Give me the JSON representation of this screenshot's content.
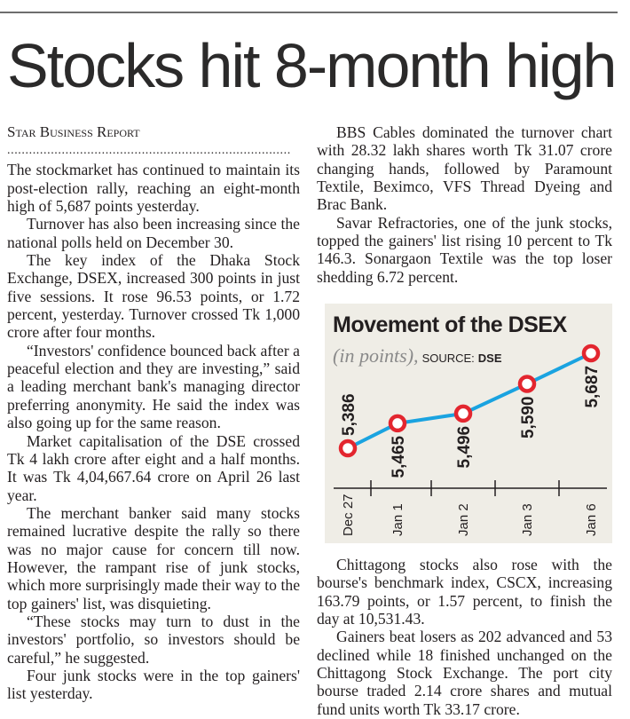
{
  "headline": "Stocks hit 8-month high",
  "byline": "Star Business Report",
  "dots": "..............................................................................",
  "left_paragraphs": [
    "The stockmarket has continued to maintain its post-election rally, reaching an eight-month high of 5,687 points yesterday.",
    "Turnover has also been increasing since the national polls held on December 30.",
    "The key index of the Dhaka Stock Exchange, DSEX, increased 300 points in just five sessions. It rose 96.53 points, or 1.72 percent, yesterday. Turnover crossed Tk 1,000 crore after four months.",
    "“Investors' confidence bounced back after a peaceful election and they are investing,” said a leading merchant bank's managing director preferring anonymity. He said the index was also going up for the same reason.",
    "Market capitalisation of the DSE crossed Tk 4 lakh crore after eight and a half months. It was Tk 4,04,667.64 crore on April 26 last year.",
    "The merchant banker said many stocks remained lucrative despite the rally so there was no major cause for concern till now. However, the rampant rise of junk stocks, which more surprisingly made their way to the top gainers' list, was disquieting.",
    "“These stocks may turn to dust in the investors' portfolio, so investors should be careful,” he suggested.",
    "Four junk stocks were in the top gainers' list yesterday."
  ],
  "right_top_paragraphs": [
    "BBS Cables dominated the turnover chart with 28.32 lakh shares worth Tk 31.07 crore changing hands, followed by Paramount Textile, Beximco, VFS Thread Dyeing and Brac Bank.",
    "Savar Refractories, one of the junk stocks, topped the gainers' list rising 10 percent to Tk 146.3. Sonargaon Textile was the top loser shedding 6.72 percent."
  ],
  "right_bottom_paragraphs": [
    "Chittagong stocks also rose with the bourse's benchmark index, CSCX, increasing 163.79 points, or 1.57 percent, to finish the day at 10,531.43.",
    "Gainers beat losers as 202 advanced and 53 declined while 18 finished unchanged on the Chittagong Stock Exchange. The port city bourse traded 2.14 crore shares and mutual fund units worth Tk 33.17 crore."
  ],
  "chart_data": {
    "type": "line",
    "title": "Movement of the DSEX",
    "unit": "(in points),",
    "source_label": "SOURCE:",
    "source": "DSE",
    "categories": [
      "Dec 27",
      "Jan 1",
      "Jan 2",
      "Jan 3",
      "Jan 6"
    ],
    "values": [
      5386,
      5465,
      5496,
      5590,
      5687
    ],
    "value_labels": [
      "5,386",
      "5,465",
      "5,496",
      "5,590",
      "5,687"
    ],
    "line_color": "#1aa3e0",
    "marker_color": "#e3262f",
    "background": "#efede6",
    "grid": false
  }
}
